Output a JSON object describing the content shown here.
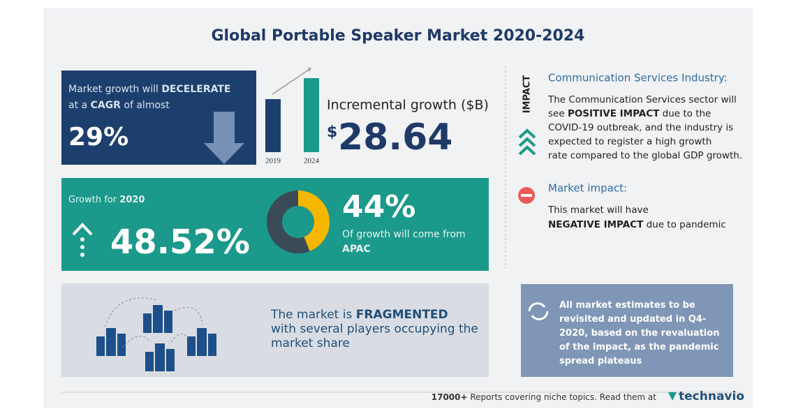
{
  "title": "Global Portable Speaker Market 2020-2024",
  "cagr": {
    "text": [
      [
        "Market growth will ",
        "DECELERATE"
      ],
      [
        "at a ",
        "CAGR",
        " of almost"
      ]
    ],
    "value": "29%"
  },
  "incremental": {
    "years": [
      "2019",
      "2024"
    ],
    "label": "Incremental growth ($B)",
    "currency": "$",
    "value": "28.64"
  },
  "growth_2020": {
    "label": [
      "Growth for ",
      "2020"
    ],
    "value": "48.52%"
  },
  "apac": {
    "share": {
      "value": 44,
      "label": "44%"
    },
    "text": "Of growth will come from",
    "region": "APAC"
  },
  "vendor_landscape": {
    "text": [
      [
        "The market is ",
        "FRAGMENTED"
      ],
      [
        "with several players occupying the"
      ],
      [
        "market share"
      ]
    ]
  },
  "impact": {
    "heading": "IMPACT",
    "industry_title": "Communication Services Industry:",
    "industry_text": [
      [
        "The Communication Services sector will"
      ],
      [
        "see ",
        "POSITIVE IMPACT",
        " due to the"
      ],
      [
        "COVID-19 outbreak, and the industry is"
      ],
      [
        "expected to register a high growth"
      ],
      [
        "rate compared to the global GDP growth."
      ]
    ],
    "market_title": "Market impact:",
    "market_text": [
      [
        "This market will have"
      ],
      [
        "NEGATIVE IMPACT",
        " due to pandemic"
      ]
    ]
  },
  "note": {
    "text": [
      [
        "All market estimates to be"
      ],
      [
        "revisited and updated in Q4-"
      ],
      [
        "2020, based on the revaluation"
      ],
      [
        "of the impact, as the pandemic"
      ],
      [
        "spread plateaus"
      ]
    ]
  },
  "footer": {
    "text": [
      "17000+",
      " Reports covering niche topics. Read them at"
    ],
    "logo": "technavio"
  }
}
